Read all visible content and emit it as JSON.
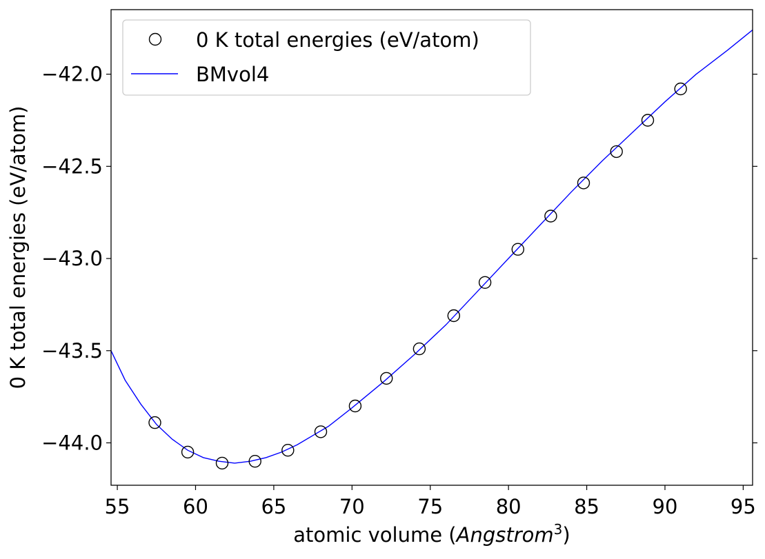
{
  "chart_data": {
    "type": "scatter",
    "xlabel": "atomic volume (",
    "xlabel_math": "Angstrom",
    "xlabel_sup": "3",
    "xlabel_close": ")",
    "ylabel": "0 K total energies (eV/atom)",
    "xlim": [
      54.6,
      95.6
    ],
    "ylim": [
      -44.23,
      -41.65
    ],
    "xticks": [
      55,
      60,
      65,
      70,
      75,
      80,
      85,
      90,
      95
    ],
    "yticks": [
      -44.0,
      -43.5,
      -43.0,
      -42.5,
      -42.0
    ],
    "xtick_labels": [
      "55",
      "60",
      "65",
      "70",
      "75",
      "80",
      "85",
      "90",
      "95"
    ],
    "ytick_labels": [
      "−44.0",
      "−43.5",
      "−43.0",
      "−42.5",
      "−42.0"
    ],
    "grid": false,
    "legend_position": "top-left",
    "series": [
      {
        "name": "0 K total energies (eV/atom)",
        "kind": "scatter",
        "marker": "open-circle",
        "color": "#000000",
        "x": [
          57.4,
          59.5,
          61.7,
          63.8,
          65.9,
          68.0,
          70.2,
          72.2,
          74.3,
          76.5,
          78.5,
          80.6,
          82.7,
          84.8,
          86.9,
          88.9,
          91.0
        ],
        "y": [
          -43.89,
          -44.05,
          -44.11,
          -44.1,
          -44.04,
          -43.94,
          -43.8,
          -43.65,
          -43.49,
          -43.31,
          -43.13,
          -42.95,
          -42.77,
          -42.59,
          -42.42,
          -42.25,
          -42.08
        ]
      },
      {
        "name": "BMvol4",
        "kind": "line",
        "color": "#0000ff",
        "x": [
          54.6,
          55.5,
          56.5,
          57.5,
          58.5,
          59.5,
          60.5,
          61.5,
          62.5,
          63.5,
          64.5,
          65.5,
          66.5,
          67.5,
          68.5,
          70.0,
          72.0,
          74.0,
          76.0,
          78.0,
          80.0,
          82.0,
          84.0,
          86.0,
          88.0,
          90.0,
          92.0,
          94.0,
          95.6
        ],
        "y": [
          -43.5,
          -43.66,
          -43.79,
          -43.9,
          -43.98,
          -44.04,
          -44.08,
          -44.1,
          -44.11,
          -44.1,
          -44.08,
          -44.05,
          -44.01,
          -43.96,
          -43.91,
          -43.81,
          -43.67,
          -43.52,
          -43.36,
          -43.18,
          -43.0,
          -42.82,
          -42.64,
          -42.47,
          -42.31,
          -42.15,
          -42.0,
          -41.87,
          -41.76
        ]
      }
    ]
  }
}
